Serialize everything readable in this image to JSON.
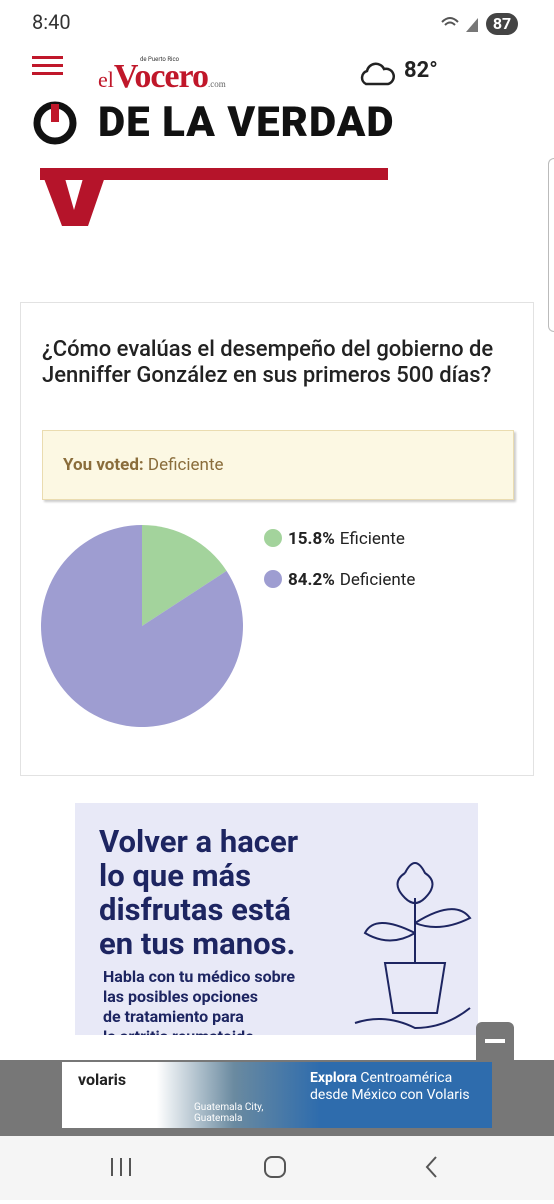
{
  "status_bar": {
    "time": "8:40",
    "battery": "87"
  },
  "header": {
    "logo": "Vocero",
    "logo_prefix": "el",
    "logo_small": "de Puerto Rico",
    "logo_suffix": ".com",
    "temperature": "82°"
  },
  "banner": {
    "title": "DE LA VERDAD"
  },
  "poll": {
    "question": "¿Cómo evalúas el desempeño del gobierno de Jenniffer González en sus primeros 500 días?",
    "you_voted_label": "You voted:",
    "you_voted_value": "Deficiente",
    "chart_data": {
      "type": "pie",
      "categories": [
        "Eficiente",
        "Deficiente"
      ],
      "values": [
        15.8,
        84.2
      ],
      "value_labels": [
        "15.8%",
        "84.2%"
      ],
      "colors": [
        "#a3d39c",
        "#9e9dd1"
      ]
    }
  },
  "ad": {
    "headline": [
      "Volver a hacer",
      "lo que más",
      "disfrutas está",
      "en tus manos."
    ],
    "body": [
      "Habla con tu médico sobre",
      "las posibles opciones",
      "de tratamiento para",
      "la artritis reumatoide."
    ]
  },
  "bottom_ad": {
    "brand": "volaris",
    "tagline_bold": "Explora",
    "tagline": [
      "Centroamérica",
      "desde México con Volaris"
    ],
    "location": [
      "Guatemala City,",
      "Guatemala"
    ]
  }
}
